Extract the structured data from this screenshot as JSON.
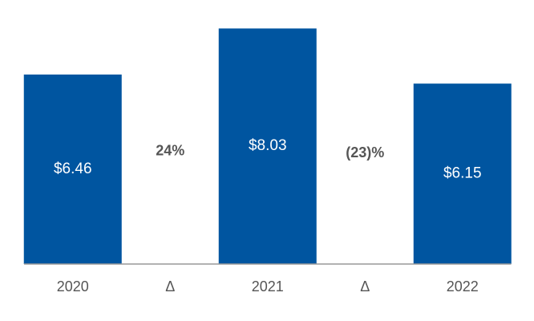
{
  "chart_data": {
    "type": "bar",
    "categories": [
      "2020",
      "Δ",
      "2021",
      "Δ",
      "2022"
    ],
    "series": [
      {
        "color": "#0055a0",
        "values": [
          6.46,
          null,
          8.03,
          null,
          6.15
        ],
        "value_labels": [
          "$6.46",
          null,
          "$8.03",
          null,
          "$6.15"
        ]
      }
    ],
    "annotations": [
      "24%",
      "(23)%"
    ],
    "ylim": [
      0,
      9
    ]
  }
}
